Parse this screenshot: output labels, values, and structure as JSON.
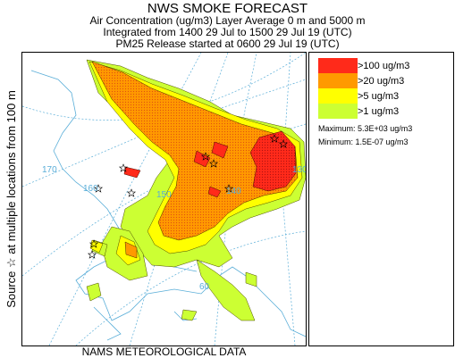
{
  "header": {
    "title": "NWS SMOKE FORECAST",
    "line2": "Air Concentration (ug/m3) Layer Average    0 m and  5000 m",
    "line3": "Integrated from 1400 29 Jul to 1500 29 Jul 19 (UTC)",
    "line4": "PM25 Release started at 0600 29 Jul 19 (UTC)"
  },
  "side_label": "Source ☆  at multiple locations  from  100 m",
  "bottom_label": "NAMS METEOROLOGICAL DATA",
  "map": {
    "lon_labels": [
      "170",
      "160",
      "150",
      "140",
      "130"
    ],
    "lat_labels": [
      "60"
    ]
  },
  "legend": {
    "items": [
      {
        "label": ">100 ug/m3",
        "color": "#ff2a1a"
      },
      {
        "label": ">20 ug/m3",
        "color": "#ff9900"
      },
      {
        "label": ">5 ug/m3",
        "color": "#ffff00"
      },
      {
        "label": ">1 ug/m3",
        "color": "#ccff33"
      }
    ],
    "maximum": "Maximum: 5.3E+03 ug/m3",
    "minimum": "Minimum: 1.5E-07 ug/m3"
  }
}
